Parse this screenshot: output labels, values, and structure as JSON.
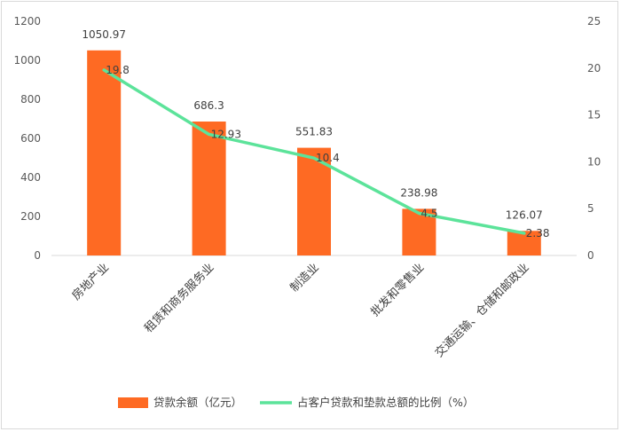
{
  "chart_data": {
    "type": "bar+line",
    "categories": [
      "房地产业",
      "租赁和商务服务业",
      "制造业",
      "批发和零售业",
      "交通运输、仓储和邮政业"
    ],
    "series": [
      {
        "name": "贷款余额（亿元）",
        "type": "bar",
        "axis": "left",
        "values": [
          1050.97,
          686.3,
          551.83,
          238.98,
          126.07
        ],
        "labels": [
          "1050.97",
          "686.3",
          "551.83",
          "238.98",
          "126.07"
        ],
        "color": "#fe6a23"
      },
      {
        "name": "占客户贷款和垫款总额的比例（%）",
        "type": "line",
        "axis": "right",
        "values": [
          19.8,
          12.93,
          10.4,
          4.5,
          2.38
        ],
        "labels": [
          "19.8",
          "12.93",
          "10.4",
          "4.5",
          "2.38"
        ],
        "color": "#5ce39a"
      }
    ],
    "y_left": {
      "min": 0,
      "max": 1200,
      "ticks": [
        "0",
        "200",
        "400",
        "600",
        "800",
        "1000",
        "1200"
      ]
    },
    "y_right": {
      "min": 0,
      "max": 25,
      "ticks": [
        "0",
        "5",
        "10",
        "15",
        "20",
        "25"
      ]
    },
    "grid": false,
    "legend": "bottom"
  }
}
